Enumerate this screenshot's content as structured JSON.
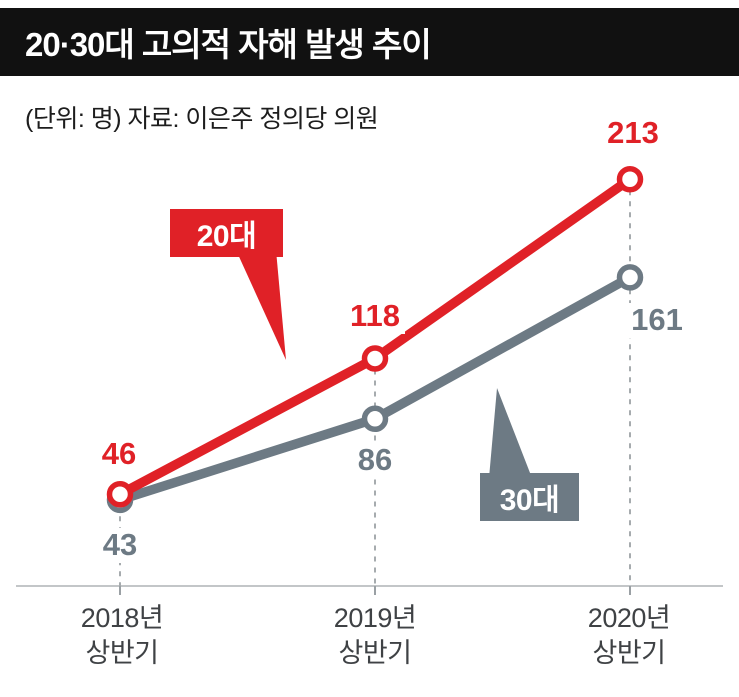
{
  "header": {
    "title": "20·30대 고의적 자해 발생 추이"
  },
  "subtitle": "(단위: 명) 자료: 이은주 정의당 의원",
  "chart_data": {
    "type": "line",
    "title": "20·30대 고의적 자해 발생 추이",
    "unit": "명",
    "source": "이은주 정의당 의원",
    "categories": [
      "2018년 상반기",
      "2019년 상반기",
      "2020년 상반기"
    ],
    "x_tick_labels": [
      "2018년\n상반기",
      "2019년\n상반기",
      "2020년\n상반기"
    ],
    "series": [
      {
        "name": "20대",
        "color": "#e02127",
        "values": [
          46,
          118,
          213
        ]
      },
      {
        "name": "30대",
        "color": "#6d7a84",
        "values": [
          43,
          86,
          161
        ]
      }
    ],
    "ylim": [
      0,
      240
    ],
    "grid": false,
    "legend": "inline-callouts",
    "guide_lines": "dashed-vertical-per-category",
    "colors": {
      "axis": "#c3c6c8",
      "tick": "#9aa0a4",
      "dash": "#a6abae"
    }
  }
}
